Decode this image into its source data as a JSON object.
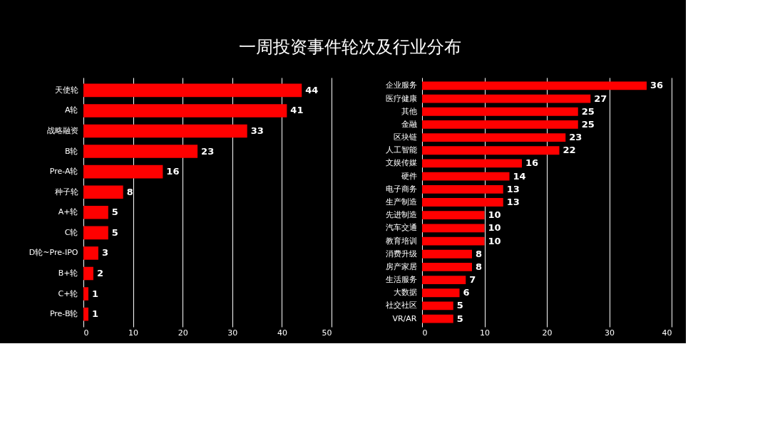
{
  "chart_data": [
    {
      "type": "bar",
      "orientation": "horizontal",
      "title": "一周投资事件轮次及行业分布",
      "categories": [
        "天使轮",
        "A轮",
        "战略融资",
        "B轮",
        "Pre-A轮",
        "种子轮",
        "A+轮",
        "C轮",
        "D轮~Pre-IPO",
        "B+轮",
        "C+轮",
        "Pre-B轮"
      ],
      "values": [
        44,
        41,
        33,
        23,
        16,
        8,
        5,
        5,
        3,
        2,
        1,
        1
      ],
      "color": "#ff0000",
      "xlim": [
        0,
        50
      ],
      "xticks": [
        0,
        10,
        20,
        30,
        40,
        50
      ],
      "grid": "x",
      "data_labels": true
    },
    {
      "type": "bar",
      "orientation": "horizontal",
      "categories": [
        "企业服务",
        "医疗健康",
        "其他",
        "金融",
        "区块链",
        "人工智能",
        "文娱传媒",
        "硬件",
        "电子商务",
        "生产制造",
        "先进制造",
        "汽车交通",
        "教育培训",
        "消费升级",
        "房产家居",
        "生活服务",
        "大数据",
        "社交社区",
        "VR/AR"
      ],
      "values": [
        36,
        27,
        25,
        25,
        23,
        22,
        16,
        14,
        13,
        13,
        10,
        10,
        10,
        8,
        8,
        7,
        6,
        5,
        5
      ],
      "color": "#ff0000",
      "xlim": [
        0,
        40
      ],
      "xticks": [
        0,
        10,
        20,
        30,
        40
      ],
      "grid": "x",
      "data_labels": true
    }
  ]
}
